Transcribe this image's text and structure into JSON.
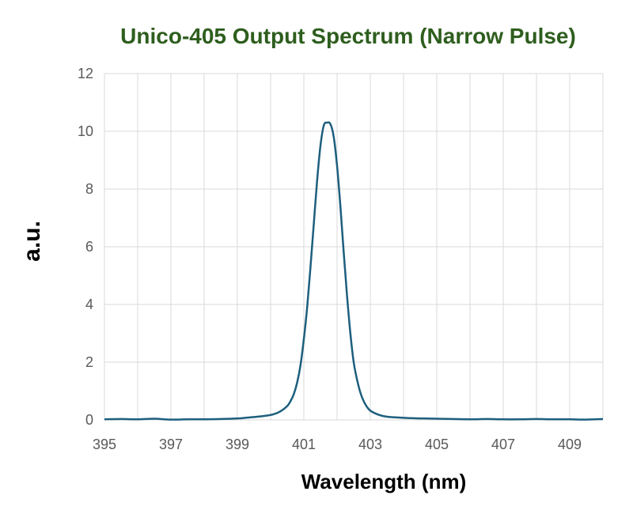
{
  "colors": {
    "title": "#2e5e1e",
    "line": "#1d5f7d",
    "grid": "#d9d9d9",
    "tick_text": "#595959"
  },
  "chart_data": {
    "type": "line",
    "title": "Unico-405 Output Spectrum (Narrow Pulse)",
    "xlabel": "Wavelength (nm)",
    "ylabel": "a.u.",
    "xlim": [
      395,
      410
    ],
    "ylim": [
      0,
      12
    ],
    "x_ticks": [
      "395",
      "397",
      "399",
      "401",
      "403",
      "405",
      "407",
      "409"
    ],
    "y_ticks": [
      "0",
      "2",
      "4",
      "6",
      "8",
      "10",
      "12"
    ],
    "grid": true,
    "legend": "none",
    "series": [
      {
        "x": [
          395.0,
          395.5,
          396.0,
          396.5,
          397.0,
          397.5,
          398.0,
          398.5,
          399.0,
          399.3,
          399.6,
          399.9,
          400.1,
          400.3,
          400.5,
          400.6,
          400.7,
          400.8,
          400.9,
          401.0,
          401.1,
          401.2,
          401.3,
          401.4,
          401.5,
          401.6,
          401.7,
          401.8,
          401.9,
          402.0,
          402.1,
          402.2,
          402.3,
          402.4,
          402.5,
          402.6,
          402.7,
          402.8,
          402.9,
          403.0,
          403.2,
          403.4,
          403.6,
          403.9,
          404.2,
          404.6,
          405.0,
          405.5,
          406.0,
          406.5,
          407.0,
          407.5,
          408.0,
          408.5,
          409.0,
          409.5,
          410.0
        ],
        "y": [
          0.02,
          0.03,
          0.02,
          0.04,
          0.01,
          0.02,
          0.02,
          0.03,
          0.05,
          0.08,
          0.11,
          0.15,
          0.2,
          0.3,
          0.48,
          0.65,
          0.9,
          1.3,
          1.9,
          2.8,
          3.9,
          5.3,
          6.8,
          8.3,
          9.5,
          10.2,
          10.3,
          10.25,
          9.8,
          8.8,
          7.4,
          5.8,
          4.3,
          3.0,
          2.0,
          1.4,
          0.95,
          0.65,
          0.45,
          0.32,
          0.2,
          0.13,
          0.1,
          0.08,
          0.06,
          0.05,
          0.04,
          0.03,
          0.02,
          0.03,
          0.02,
          0.02,
          0.03,
          0.02,
          0.02,
          0.01,
          0.03
        ]
      }
    ]
  }
}
